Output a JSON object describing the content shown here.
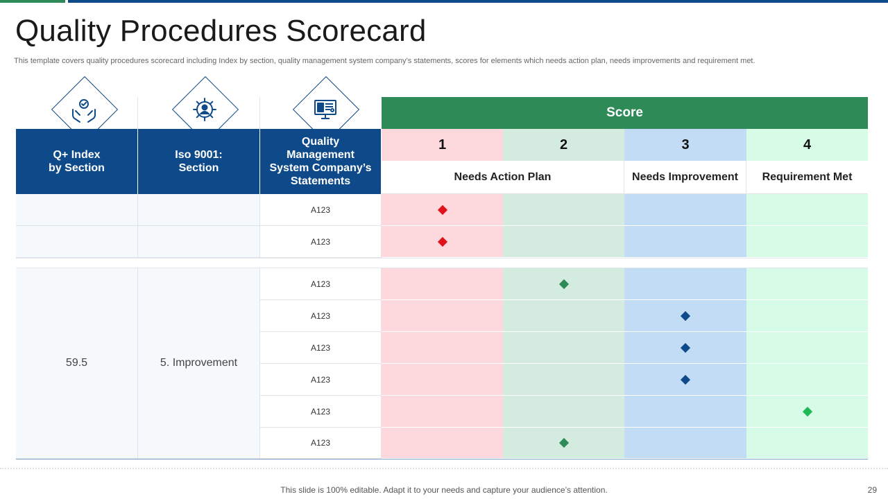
{
  "title": "Quality Procedures Scorecard",
  "subtitle": "This template covers quality procedures scorecard including Index by section, quality management system company’s statements, scores for elements which needs action plan, needs improvements and requirement met.",
  "icons": [
    "hands-gear-check-icon",
    "gear-person-icon",
    "monitor-dashboard-icon"
  ],
  "headers": {
    "index": "Q+ Index\nby Section",
    "iso": "Iso 9001:\nSection",
    "statements": "Quality\nManagement\nSystem Company’s\nStatements",
    "score": "Score"
  },
  "score_levels": [
    "1",
    "2",
    "3",
    "4"
  ],
  "score_labels": {
    "action": "Needs Action Plan",
    "improvement": "Needs Improvement",
    "met": "Requirement Met"
  },
  "colors": {
    "header_blue": "#0e4a8a",
    "score_green": "#2e8b57",
    "col1": "#fdd8dc",
    "col2": "#d4ece0",
    "col3": "#c2dcf5",
    "col4": "#d6fbe6",
    "marker_red": "#e0121b",
    "marker_green": "#2e8b57",
    "marker_blue": "#0e4a8a",
    "marker_lightgreen": "#1db954"
  },
  "groups": [
    {
      "index": "",
      "section": "",
      "rows": [
        {
          "statement": "A123",
          "score": 1,
          "color": "#e0121b"
        },
        {
          "statement": "A123",
          "score": 1,
          "color": "#e0121b"
        }
      ]
    },
    {
      "index": "59.5",
      "section": "5. Improvement",
      "rows": [
        {
          "statement": "A123",
          "score": 2,
          "color": "#2e8b57"
        },
        {
          "statement": "A123",
          "score": 3,
          "color": "#0e4a8a"
        },
        {
          "statement": "A123",
          "score": 3,
          "color": "#0e4a8a"
        },
        {
          "statement": "A123",
          "score": 3,
          "color": "#0e4a8a"
        },
        {
          "statement": "A123",
          "score": 4,
          "color": "#1db954"
        },
        {
          "statement": "A123",
          "score": 2,
          "color": "#2e8b57"
        }
      ]
    }
  ],
  "footer": "This slide is 100% editable. Adapt it to your needs and capture your audience’s attention.",
  "page_number": "29"
}
